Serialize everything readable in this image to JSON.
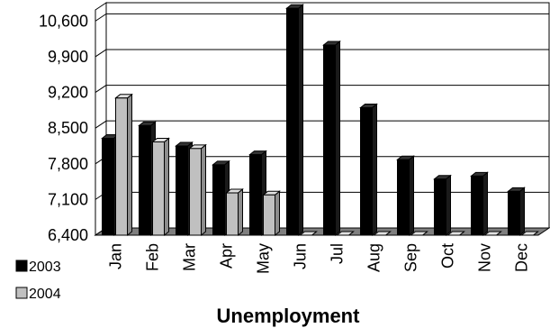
{
  "chart_data": {
    "type": "bar",
    "title": "",
    "xlabel": "Unemployment",
    "ylabel": "",
    "ylim": [
      6400,
      10960
    ],
    "yticks": [
      "6,400",
      "7,100",
      "7,800",
      "8,500",
      "9,200",
      "9,900",
      "10,600"
    ],
    "categories": [
      "Jan",
      "Feb",
      "Mar",
      "Apr",
      "May",
      "Jun",
      "Jul",
      "Aug",
      "Sep",
      "Oct",
      "Nov",
      "Dec"
    ],
    "series": [
      {
        "name": "2003",
        "color": "#000000",
        "values": [
          8300,
          8550,
          8150,
          7780,
          7980,
          10850,
          10130,
          8900,
          7880,
          7500,
          7560,
          7260
        ]
      },
      {
        "name": "2004",
        "color": "#c0c0c0",
        "values": [
          9090,
          8230,
          8100,
          7230,
          7190,
          6400,
          6400,
          6400,
          6400,
          6400,
          6400,
          6400
        ]
      }
    ],
    "legend": "bottom-left",
    "grid": true
  }
}
